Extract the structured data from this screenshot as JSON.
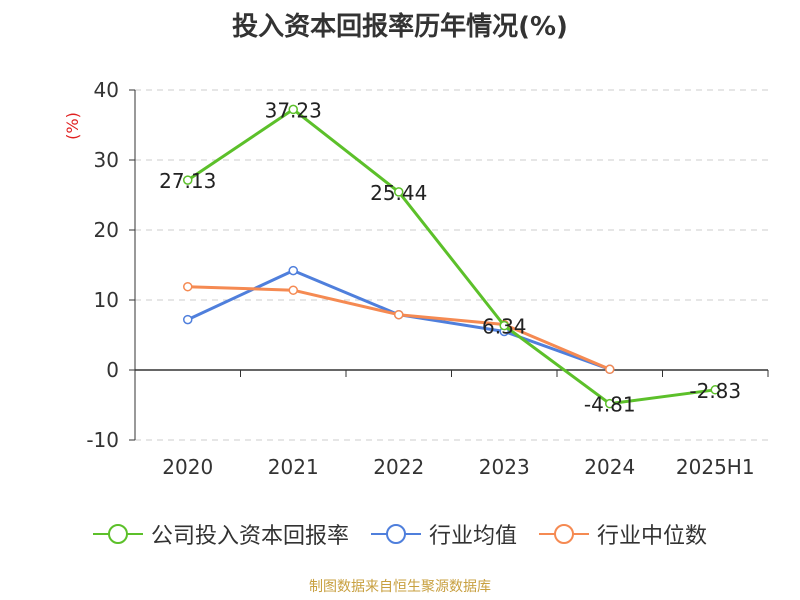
{
  "chart_data": {
    "type": "line",
    "title": "投入资本回报率历年情况(%)",
    "ylabel": "(%)",
    "xlabel": "",
    "categories": [
      "2020",
      "2021",
      "2022",
      "2023",
      "2024",
      "2025H1"
    ],
    "ylim": [
      -10,
      40
    ],
    "yticks": [
      -10,
      0,
      10,
      20,
      30,
      40
    ],
    "grid": true,
    "legend_position": "bottom",
    "series": [
      {
        "name": "公司投入资本回报率",
        "color": "#5cc02a",
        "values": [
          27.13,
          37.23,
          25.44,
          6.34,
          -4.81,
          -2.83
        ],
        "labels": [
          "27.13",
          "37.23",
          "25.44",
          "6.34",
          "-4.81",
          "-2.83"
        ]
      },
      {
        "name": "行业均值",
        "color": "#4f7fdc",
        "values": [
          7.2,
          14.2,
          7.9,
          5.5,
          0.1,
          null
        ]
      },
      {
        "name": "行业中位数",
        "color": "#f58a52",
        "values": [
          11.9,
          11.4,
          7.9,
          6.5,
          0.1,
          null
        ]
      }
    ]
  },
  "source_note": "制图数据来自恒生聚源数据库"
}
